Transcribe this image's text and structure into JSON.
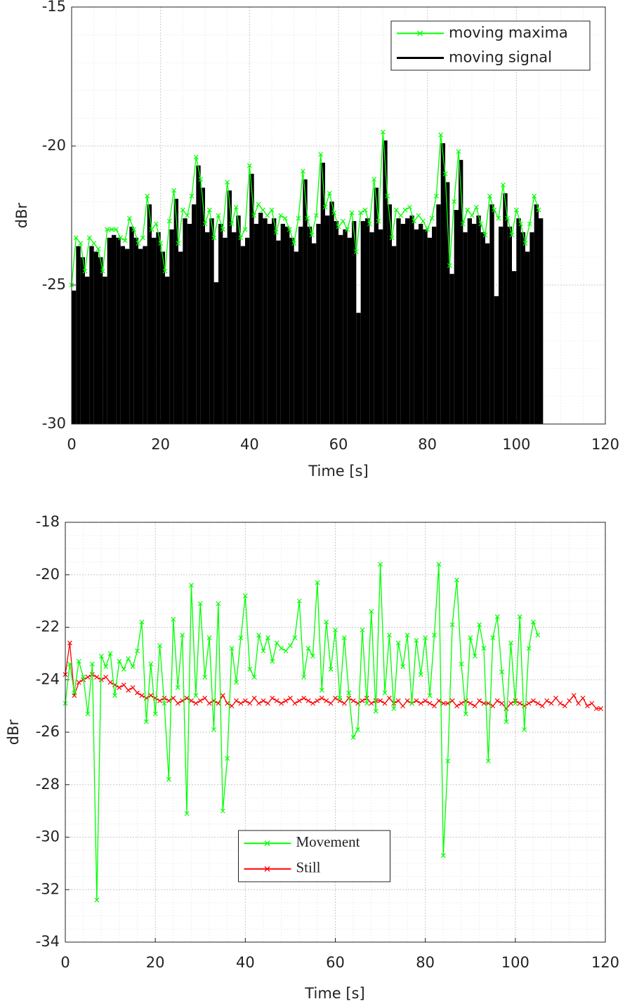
{
  "chart_data": [
    {
      "type": "line",
      "xlabel": "Time [s]",
      "ylabel": "dBr",
      "xlim": [
        0,
        120
      ],
      "xticks": [
        0,
        20,
        40,
        60,
        80,
        100,
        120
      ],
      "ylim": [
        -30,
        -15
      ],
      "yticks": [
        -30,
        -25,
        -20,
        -15
      ],
      "grid": true,
      "legend": "upper right",
      "legend_font": "sans-serif",
      "x": [
        0,
        1,
        2,
        3,
        4,
        5,
        6,
        7,
        8,
        9,
        10,
        11,
        12,
        13,
        14,
        15,
        16,
        17,
        18,
        19,
        20,
        21,
        22,
        23,
        24,
        25,
        26,
        27,
        28,
        29,
        30,
        31,
        32,
        33,
        34,
        35,
        36,
        37,
        38,
        39,
        40,
        41,
        42,
        43,
        44,
        45,
        46,
        47,
        48,
        49,
        50,
        51,
        52,
        53,
        54,
        55,
        56,
        57,
        58,
        59,
        60,
        61,
        62,
        63,
        64,
        65,
        66,
        67,
        68,
        69,
        70,
        71,
        72,
        73,
        74,
        75,
        76,
        77,
        78,
        79,
        80,
        81,
        82,
        83,
        84,
        85,
        86,
        87,
        88,
        89,
        90,
        91,
        92,
        93,
        94,
        95,
        96,
        97,
        98,
        99,
        100,
        101,
        102,
        103,
        104,
        105
      ],
      "series": [
        {
          "name": "moving maxima",
          "color": "#00ff00",
          "style": "line-marker",
          "values": [
            -25,
            -23.3,
            -23.5,
            -24.5,
            -23.3,
            -23.5,
            -23.7,
            -24.5,
            -23,
            -23,
            -23,
            -23.3,
            -23.4,
            -22.6,
            -23,
            -23.5,
            -23.3,
            -21.8,
            -23,
            -22.8,
            -23.5,
            -24.5,
            -22.7,
            -21.6,
            -23.5,
            -22.3,
            -22.5,
            -21.8,
            -20.4,
            -21.2,
            -22.8,
            -22.3,
            -23.3,
            -22.5,
            -23,
            -21.3,
            -22.8,
            -22.2,
            -23.3,
            -23,
            -20.7,
            -22.5,
            -22.1,
            -22.3,
            -22.5,
            -22.3,
            -23.1,
            -22.5,
            -22.6,
            -23,
            -23.5,
            -22.6,
            -20.9,
            -22.6,
            -23.2,
            -22.5,
            -20.3,
            -22.2,
            -21.7,
            -22.4,
            -22.9,
            -22.7,
            -23,
            -22.4,
            -23.8,
            -22.4,
            -22.3,
            -22.8,
            -21.2,
            -22.7,
            -19.5,
            -21.8,
            -23.3,
            -22.3,
            -22.5,
            -22.3,
            -22.2,
            -22.7,
            -22.5,
            -22.7,
            -23,
            -22.6,
            -21.8,
            -19.6,
            -21,
            -24.3,
            -22,
            -20.2,
            -22.8,
            -22.3,
            -22.5,
            -22.2,
            -22.8,
            -23.2,
            -21.8,
            -22.3,
            -22.6,
            -21.4,
            -22.6,
            -23.2,
            -22.3,
            -22.8,
            -23.5,
            -22.8,
            -21.8,
            -22.3
          ]
        },
        {
          "name": "moving signal",
          "color": "#000000",
          "style": "stem",
          "values": [
            -25.2,
            -23.6,
            -24,
            -24.7,
            -23.6,
            -23.8,
            -24,
            -24.7,
            -23.3,
            -23.2,
            -23.3,
            -23.6,
            -23.7,
            -22.9,
            -23.3,
            -23.7,
            -23.6,
            -22.1,
            -23.3,
            -23.1,
            -23.8,
            -24.7,
            -23,
            -21.9,
            -23.8,
            -22.6,
            -22.8,
            -22.1,
            -20.7,
            -21.5,
            -23.1,
            -22.6,
            -24.9,
            -22.8,
            -23.3,
            -21.6,
            -23.1,
            -22.5,
            -23.6,
            -23.3,
            -21,
            -22.8,
            -22.4,
            -22.6,
            -22.8,
            -22.6,
            -23.4,
            -22.8,
            -22.9,
            -23.3,
            -23.8,
            -22.9,
            -21.2,
            -22.9,
            -23.5,
            -22.8,
            -20.6,
            -22.5,
            -22,
            -22.7,
            -23.2,
            -23,
            -23.3,
            -22.7,
            -26,
            -22.7,
            -22.6,
            -23.1,
            -21.5,
            -23,
            -19.8,
            -22.1,
            -23.6,
            -22.6,
            -22.8,
            -22.6,
            -22.5,
            -23,
            -22.8,
            -23,
            -23.3,
            -22.9,
            -22.1,
            -19.9,
            -21.3,
            -24.6,
            -22.3,
            -20.5,
            -23.1,
            -22.6,
            -22.8,
            -22.5,
            -23.1,
            -23.5,
            -22.1,
            -25.4,
            -22.9,
            -21.7,
            -22.9,
            -24.5,
            -22.6,
            -23.1,
            -23.8,
            -23.1,
            -22.1,
            -22.6
          ]
        }
      ]
    },
    {
      "type": "line",
      "xlabel": "Time [s]",
      "ylabel": "dBr",
      "xlim": [
        0,
        120
      ],
      "xticks": [
        0,
        20,
        40,
        60,
        80,
        100,
        120
      ],
      "ylim": [
        -34,
        -18
      ],
      "yticks": [
        -34,
        -32,
        -30,
        -28,
        -26,
        -24,
        -22,
        -20,
        -18
      ],
      "grid": true,
      "legend": "lower center",
      "legend_font": "serif",
      "series": [
        {
          "name": "Movement",
          "color": "#00ff00",
          "style": "line-marker",
          "x": [
            0,
            1,
            2,
            3,
            4,
            5,
            6,
            7,
            8,
            9,
            10,
            11,
            12,
            13,
            14,
            15,
            16,
            17,
            18,
            19,
            20,
            21,
            22,
            23,
            24,
            25,
            26,
            27,
            28,
            29,
            30,
            31,
            32,
            33,
            34,
            35,
            36,
            37,
            38,
            39,
            40,
            41,
            42,
            43,
            44,
            45,
            46,
            47,
            48,
            49,
            50,
            51,
            52,
            53,
            54,
            55,
            56,
            57,
            58,
            59,
            60,
            61,
            62,
            63,
            64,
            65,
            66,
            67,
            68,
            69,
            70,
            71,
            72,
            73,
            74,
            75,
            76,
            77,
            78,
            79,
            80,
            81,
            82,
            83,
            84,
            85,
            86,
            87,
            88,
            89,
            90,
            91,
            92,
            93,
            94,
            95,
            96,
            97,
            98,
            99,
            100,
            101,
            102,
            103,
            104,
            105
          ],
          "values": [
            -24.9,
            -23.4,
            -24.5,
            -23.3,
            -23.9,
            -25.3,
            -23.4,
            -32.4,
            -23.1,
            -23.5,
            -23,
            -24.6,
            -23.3,
            -23.6,
            -23.2,
            -23.5,
            -22.9,
            -21.8,
            -25.6,
            -23.4,
            -25.3,
            -22.7,
            -24.9,
            -27.8,
            -21.7,
            -24.3,
            -22.3,
            -29.1,
            -20.4,
            -24.6,
            -21.1,
            -23.9,
            -22.4,
            -25.9,
            -21.1,
            -29,
            -27,
            -22.8,
            -24.1,
            -22.4,
            -20.8,
            -23.6,
            -23.9,
            -22.3,
            -22.9,
            -22.4,
            -23.3,
            -22.6,
            -22.8,
            -22.9,
            -22.7,
            -22.4,
            -21,
            -23.9,
            -22.8,
            -23.1,
            -20.3,
            -24.4,
            -21.8,
            -23.6,
            -22.1,
            -24.7,
            -22.4,
            -24.5,
            -26.2,
            -25.9,
            -22.1,
            -24.9,
            -21.4,
            -25.2,
            -19.6,
            -24.5,
            -22.3,
            -25.1,
            -22.6,
            -23.5,
            -22.3,
            -24.9,
            -22.5,
            -23.8,
            -22.4,
            -24.6,
            -22.3,
            -19.6,
            -30.7,
            -27.1,
            -21.9,
            -20.2,
            -23.4,
            -25.3,
            -22.4,
            -23.1,
            -21.9,
            -22.8,
            -27.1,
            -22.4,
            -21.6,
            -23.7,
            -25.6,
            -22.6,
            -24.9,
            -21.6,
            -25.9,
            -22.8,
            -21.8,
            -22.3
          ]
        },
        {
          "name": "Still",
          "color": "#ff0000",
          "style": "line-marker",
          "x": [
            0,
            1,
            2,
            3,
            4,
            5,
            6,
            7,
            8,
            9,
            10,
            11,
            12,
            13,
            14,
            15,
            16,
            17,
            18,
            19,
            20,
            21,
            22,
            23,
            24,
            25,
            26,
            27,
            28,
            29,
            30,
            31,
            32,
            33,
            34,
            35,
            36,
            37,
            38,
            39,
            40,
            41,
            42,
            43,
            44,
            45,
            46,
            47,
            48,
            49,
            50,
            51,
            52,
            53,
            54,
            55,
            56,
            57,
            58,
            59,
            60,
            61,
            62,
            63,
            64,
            65,
            66,
            67,
            68,
            69,
            70,
            71,
            72,
            73,
            74,
            75,
            76,
            77,
            78,
            79,
            80,
            81,
            82,
            83,
            84,
            85,
            86,
            87,
            88,
            89,
            90,
            91,
            92,
            93,
            94,
            95,
            96,
            97,
            98,
            99,
            100,
            101,
            102,
            103,
            104,
            105,
            106,
            107,
            108,
            109,
            110,
            111,
            112,
            113,
            114,
            115,
            116,
            117,
            118,
            119
          ],
          "values": [
            -23.8,
            -22.6,
            -24.6,
            -24.1,
            -24,
            -23.9,
            -23.8,
            -23.9,
            -24,
            -23.9,
            -24.1,
            -24.2,
            -24.3,
            -24.2,
            -24.4,
            -24.3,
            -24.5,
            -24.6,
            -24.7,
            -24.6,
            -24.7,
            -24.8,
            -24.7,
            -24.8,
            -24.7,
            -24.9,
            -24.8,
            -24.7,
            -24.8,
            -24.9,
            -24.8,
            -24.7,
            -24.9,
            -24.8,
            -24.9,
            -24.6,
            -24.9,
            -25,
            -24.8,
            -24.9,
            -24.8,
            -24.9,
            -24.7,
            -24.9,
            -24.8,
            -24.9,
            -24.7,
            -24.8,
            -24.9,
            -24.8,
            -24.7,
            -24.9,
            -24.8,
            -24.7,
            -24.8,
            -24.9,
            -24.8,
            -24.7,
            -24.8,
            -24.9,
            -24.7,
            -24.8,
            -24.9,
            -24.7,
            -24.8,
            -24.9,
            -24.8,
            -24.7,
            -24.9,
            -24.8,
            -24.8,
            -24.9,
            -24.7,
            -24.9,
            -24.8,
            -25,
            -24.8,
            -24.9,
            -24.8,
            -24.9,
            -24.8,
            -24.9,
            -25,
            -24.8,
            -24.9,
            -24.9,
            -24.8,
            -25,
            -24.9,
            -24.8,
            -24.9,
            -25,
            -24.8,
            -24.9,
            -24.9,
            -25,
            -24.8,
            -24.9,
            -25.1,
            -24.9,
            -24.8,
            -24.9,
            -25,
            -24.9,
            -24.8,
            -24.9,
            -25,
            -24.8,
            -24.9,
            -24.7,
            -24.9,
            -25,
            -24.8,
            -24.6,
            -24.9,
            -24.7,
            -25,
            -24.9,
            -25.1,
            -25.1
          ]
        }
      ]
    }
  ]
}
